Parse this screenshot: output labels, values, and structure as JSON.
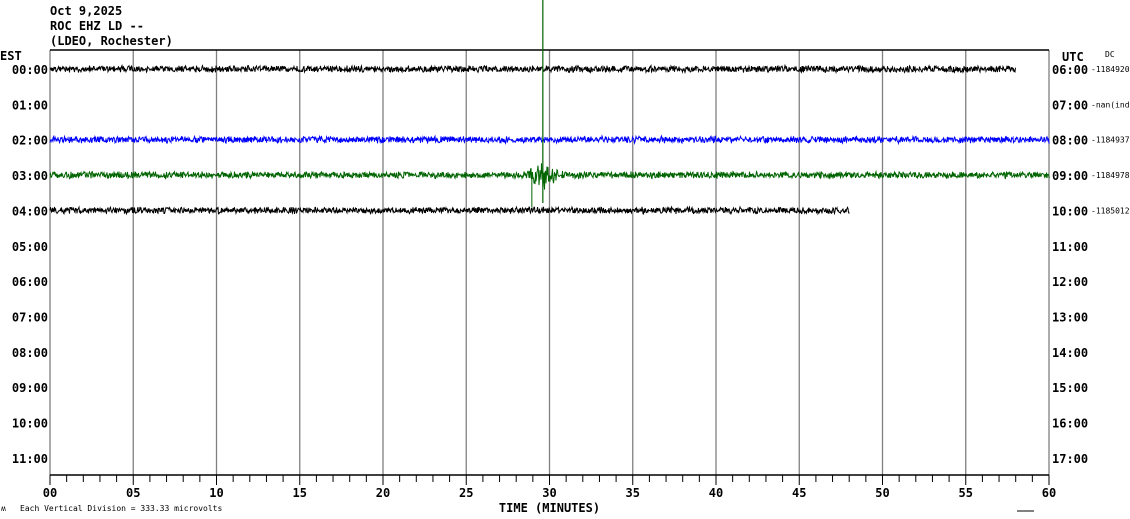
{
  "header": {
    "date": "Oct 9,2025",
    "station": "ROC EHZ LD --",
    "network": "(LDEO, Rochester)"
  },
  "chart_data": {
    "type": "line",
    "subtype": "helicorder",
    "xlabel": "TIME (MINUTES)",
    "xlim": [
      0,
      60
    ],
    "x_ticks": [
      "00",
      "05",
      "10",
      "15",
      "20",
      "25",
      "30",
      "35",
      "40",
      "45",
      "50",
      "55",
      "60"
    ],
    "minor_tick_interval_minutes": 1,
    "grid": "vertical every 5 minutes",
    "left_axis_title": "EST",
    "right_axis_title": "UTC",
    "dc_title": "DC",
    "left_labels": [
      "00:00",
      "01:00",
      "02:00",
      "03:00",
      "04:00",
      "05:00",
      "06:00",
      "07:00",
      "08:00",
      "09:00",
      "10:00",
      "11:00"
    ],
    "right_labels": [
      "06:00",
      "07:00",
      "08:00",
      "09:00",
      "10:00",
      "11:00",
      "12:00",
      "13:00",
      "14:00",
      "15:00",
      "16:00",
      "17:00"
    ],
    "traces": [
      {
        "row": 0,
        "color": "#000000",
        "end_minute": 58,
        "dc": "-1184920"
      },
      {
        "row": 1,
        "color": "#000000",
        "end_minute": 0,
        "dc": "-nan(ind"
      },
      {
        "row": 2,
        "color": "#0000ff",
        "end_minute": 60,
        "dc": "-1184937"
      },
      {
        "row": 3,
        "color": "#006400",
        "end_minute": 60,
        "dc": "-1184978",
        "event_minute": 29.6
      },
      {
        "row": 4,
        "color": "#000000",
        "end_minute": 48,
        "dc": "-1185012"
      }
    ],
    "scale_note": "Each Vertical Division =  333.33 microvolts",
    "corner_mark": "ʍ"
  }
}
